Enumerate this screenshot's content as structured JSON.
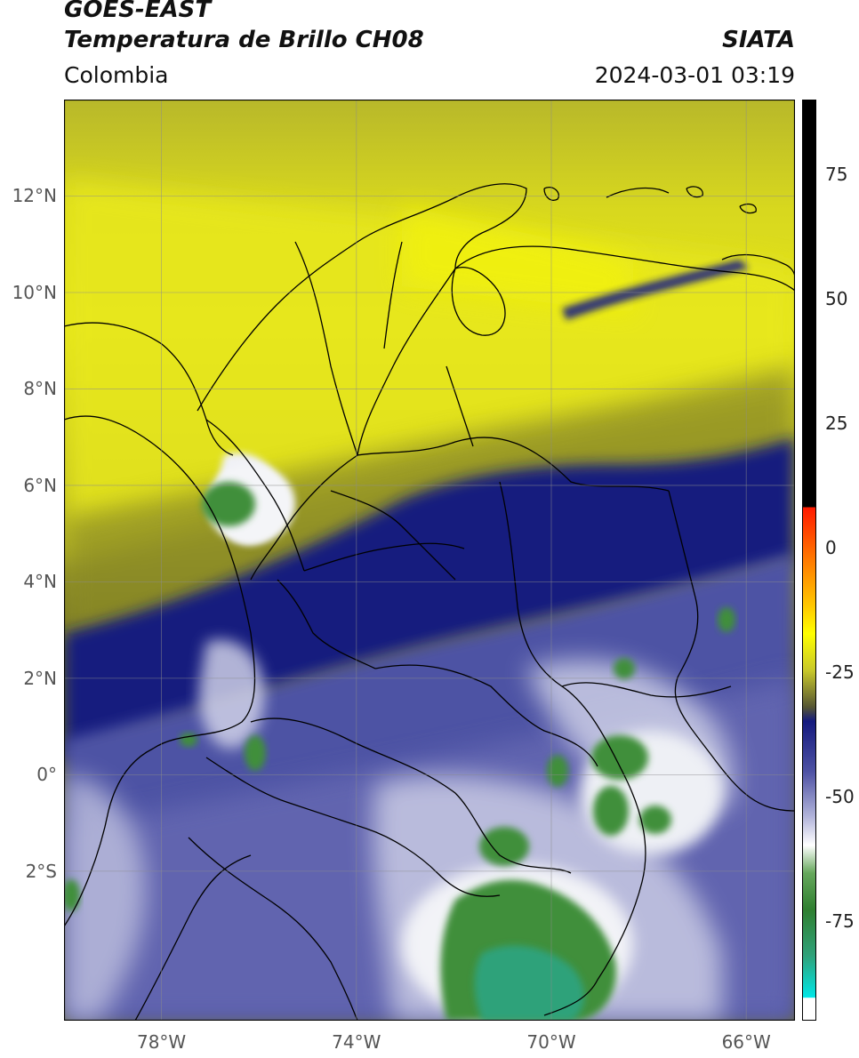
{
  "header": {
    "satellite": "GOES-EAST",
    "product": "Temperatura de Brillo CH08",
    "region": "Colombia",
    "source": "SIATA",
    "datetime": "2024-03-01 03:19"
  },
  "map": {
    "extent": {
      "lon_min": -80,
      "lon_max": -65,
      "lat_min": -5.1,
      "lat_max": 14
    },
    "lat_ticks": [
      {
        "value": 12,
        "label": "12°N"
      },
      {
        "value": 10,
        "label": "10°N"
      },
      {
        "value": 8,
        "label": "8°N"
      },
      {
        "value": 6,
        "label": "6°N"
      },
      {
        "value": 4,
        "label": "4°N"
      },
      {
        "value": 2,
        "label": "2°N"
      },
      {
        "value": 0,
        "label": "0°"
      },
      {
        "value": -2,
        "label": "2°S"
      }
    ],
    "lon_ticks": [
      {
        "value": -78,
        "label": "78°W"
      },
      {
        "value": -74,
        "label": "74°W"
      },
      {
        "value": -70,
        "label": "70°W"
      },
      {
        "value": -66,
        "label": "66°W"
      }
    ],
    "grid": true,
    "colors": {
      "warm_yellow": "#e6e61e",
      "olive": "#8c8c22",
      "deep_blue": "#141a7e",
      "mid_blue": "#5658a8",
      "pale": "#c9cbe4",
      "white": "#f4f5f8",
      "green": "#3f8f3a",
      "teal": "#2fa27a"
    }
  },
  "colorbar": {
    "range": [
      -95,
      90
    ],
    "ticks": [
      {
        "value": 75,
        "label": "75"
      },
      {
        "value": 50,
        "label": "50"
      },
      {
        "value": 25,
        "label": "25"
      },
      {
        "value": 0,
        "label": "0"
      },
      {
        "value": -25,
        "label": "-25"
      },
      {
        "value": -50,
        "label": "-50"
      },
      {
        "value": -75,
        "label": "-75"
      }
    ]
  }
}
